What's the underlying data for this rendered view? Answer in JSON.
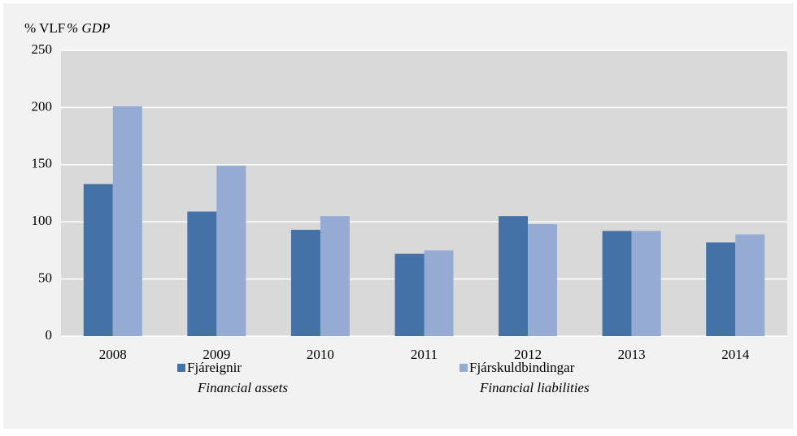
{
  "chart_data": {
    "type": "bar",
    "ylabel": "% VLF",
    "ylabel_en": "% GDP",
    "categories": [
      "2008",
      "2009",
      "2010",
      "2011",
      "2012",
      "2013",
      "2014"
    ],
    "series": [
      {
        "name": "Fjáreignir",
        "name_en": "Financial assets",
        "color": "#4471a6",
        "values": [
          133,
          109,
          93,
          72,
          105,
          92,
          82
        ]
      },
      {
        "name": "Fjárskuldbindingar",
        "name_en": "Financial  liabilities",
        "color": "#95abd3",
        "values": [
          201,
          149,
          105,
          75,
          98,
          92,
          89
        ]
      }
    ],
    "ylim": [
      0,
      250
    ],
    "yticks": [
      0,
      50,
      100,
      150,
      200,
      250
    ],
    "grid": true
  }
}
